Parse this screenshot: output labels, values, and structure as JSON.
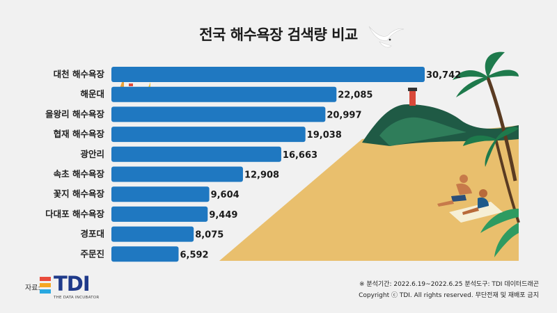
{
  "title": "전국 해수욕장 검색량 비교",
  "source": {
    "label": "자료:",
    "logo_text": "TDI",
    "logo_sub": "THE DATA INCUBATOR"
  },
  "footer": {
    "period": "※ 분석기간: 2022.6.19~2022.6.25  분석도구: TDI 데이터드래곤",
    "copyright": "Copyright ⓒ TDI. All rights reserved. 무단전재 및 재배포 금지"
  },
  "colors": {
    "bar": "#1f78c1",
    "sand": "#e9bf6d",
    "sea_background": "#f1f1f1",
    "logo_blue": "#1f3a8a",
    "logo_red": "#e94b3c",
    "logo_orange": "#f6a723",
    "logo_cyan": "#29a8e0"
  },
  "chart_data": {
    "type": "bar",
    "orientation": "horizontal",
    "categories": [
      "대천 해수욕장",
      "해운대",
      "을왕리 해수욕장",
      "협재 해수욕장",
      "광안리",
      "속초 해수욕장",
      "꽃지 해수욕장",
      "다대포 해수욕장",
      "경포대",
      "주문진"
    ],
    "values": [
      30742,
      22085,
      20997,
      19038,
      16663,
      12908,
      9604,
      9449,
      8075,
      6592
    ],
    "value_labels": [
      "30,742",
      "22,085",
      "20,997",
      "19,038",
      "16,663",
      "12,908",
      "9,604",
      "9,449",
      "8,075",
      "6,592"
    ],
    "xlim": [
      0,
      30742
    ],
    "grid": false,
    "legend": "none"
  }
}
